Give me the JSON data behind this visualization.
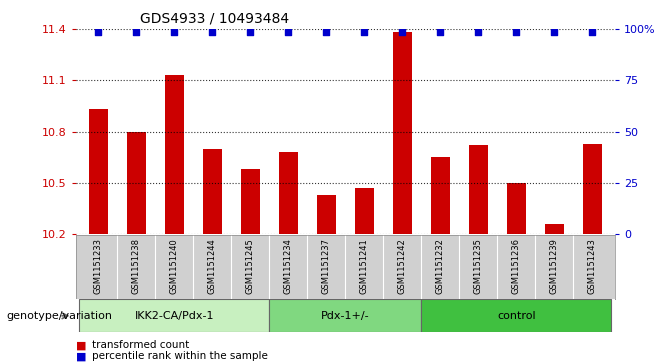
{
  "title": "GDS4933 / 10493484",
  "samples": [
    "GSM1151233",
    "GSM1151238",
    "GSM1151240",
    "GSM1151244",
    "GSM1151245",
    "GSM1151234",
    "GSM1151237",
    "GSM1151241",
    "GSM1151242",
    "GSM1151232",
    "GSM1151235",
    "GSM1151236",
    "GSM1151239",
    "GSM1151243"
  ],
  "values": [
    10.93,
    10.8,
    11.13,
    10.7,
    10.58,
    10.68,
    10.43,
    10.47,
    11.38,
    10.65,
    10.72,
    10.5,
    10.26,
    10.73
  ],
  "percentiles": [
    100,
    100,
    100,
    100,
    100,
    100,
    100,
    100,
    100,
    100,
    100,
    100,
    95,
    100
  ],
  "groups": [
    {
      "label": "IKK2-CA/Pdx-1",
      "start": 0,
      "end": 5,
      "color": "#c8f0c0"
    },
    {
      "label": "Pdx-1+/-",
      "start": 5,
      "end": 9,
      "color": "#80d880"
    },
    {
      "label": "control",
      "start": 9,
      "end": 14,
      "color": "#40c040"
    }
  ],
  "bar_color": "#cc0000",
  "dot_color": "#0000cc",
  "ylim_left": [
    10.2,
    11.4
  ],
  "ylim_right": [
    0,
    100
  ],
  "yticks_left": [
    10.2,
    10.5,
    10.8,
    11.1,
    11.4
  ],
  "yticks_right": [
    0,
    25,
    50,
    75,
    100
  ],
  "genotype_label": "genotype/variation",
  "legend_items": [
    {
      "color": "#cc0000",
      "label": "transformed count"
    },
    {
      "color": "#0000cc",
      "label": "percentile rank within the sample"
    }
  ],
  "background_color": "#ffffff",
  "tick_color_left": "#cc0000",
  "tick_color_right": "#0000cc",
  "sample_box_color": "#d0d0d0",
  "bar_width": 0.5
}
